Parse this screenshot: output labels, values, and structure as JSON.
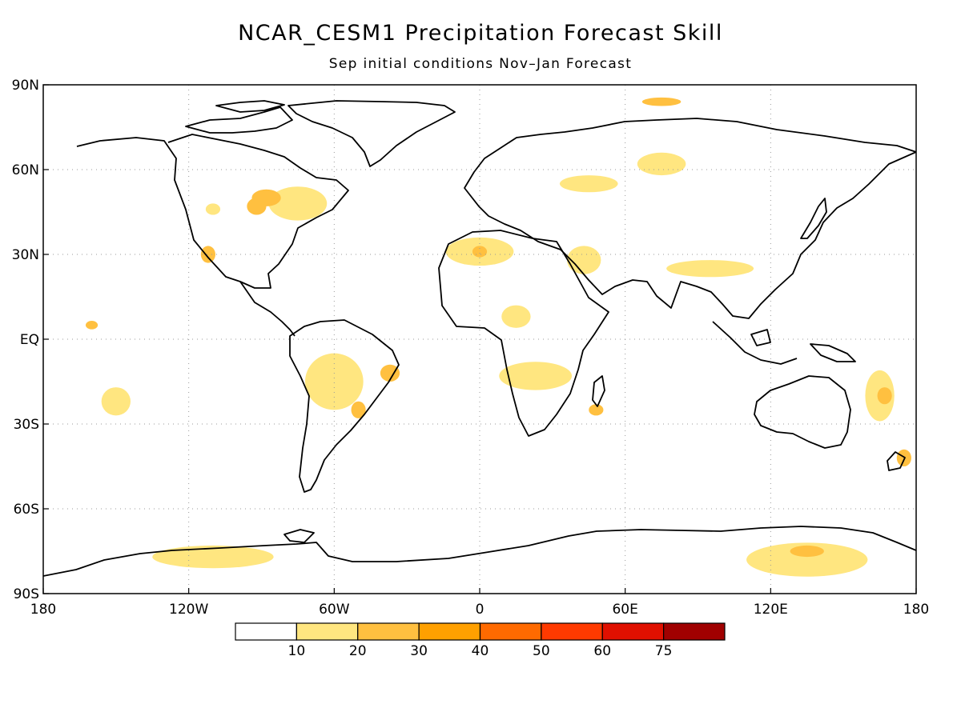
{
  "title": "NCAR_CESM1 Precipitation Forecast Skill",
  "subtitle": "Sep initial conditions   Nov–Jan Forecast",
  "axes": {
    "lon_ticks": [
      {
        "value": -180,
        "label": "180"
      },
      {
        "value": -120,
        "label": "120W"
      },
      {
        "value": -60,
        "label": "60W"
      },
      {
        "value": 0,
        "label": "0"
      },
      {
        "value": 60,
        "label": "60E"
      },
      {
        "value": 120,
        "label": "120E"
      },
      {
        "value": 180,
        "label": "180"
      }
    ],
    "lat_ticks": [
      {
        "value": 90,
        "label": "90N"
      },
      {
        "value": 60,
        "label": "60N"
      },
      {
        "value": 30,
        "label": "30N"
      },
      {
        "value": 0,
        "label": "EQ"
      },
      {
        "value": -30,
        "label": "30S"
      },
      {
        "value": -60,
        "label": "60S"
      },
      {
        "value": -90,
        "label": "90S"
      }
    ],
    "lon_range": [
      -180,
      180
    ],
    "lat_range": [
      -90,
      90
    ],
    "grid": "dotted"
  },
  "colorbar": {
    "labels": [
      "10",
      "20",
      "30",
      "40",
      "50",
      "60",
      "75"
    ],
    "colors": [
      "#ffffff",
      "#ffe680",
      "#ffc040",
      "#ffa000",
      "#ff6a00",
      "#ff3a00",
      "#e01000",
      "#a00000"
    ]
  },
  "chart_data": {
    "type": "heatmap",
    "title": "NCAR_CESM1 Precipitation Forecast Skill",
    "subtitle": "Sep initial conditions   Nov–Jan Forecast",
    "xlim": [
      -180,
      180
    ],
    "ylim": [
      -90,
      90
    ],
    "levels": [
      10,
      20,
      30,
      40,
      50,
      60,
      75
    ],
    "regions": [
      {
        "lon": -75,
        "lat": 48,
        "rx": 12,
        "ry": 6,
        "level": 10
      },
      {
        "lon": -88,
        "lat": 50,
        "rx": 6,
        "ry": 3,
        "level": 20
      },
      {
        "lon": -92,
        "lat": 47,
        "rx": 4,
        "ry": 3,
        "level": 20
      },
      {
        "lon": -112,
        "lat": 30,
        "rx": 3,
        "ry": 3,
        "level": 20
      },
      {
        "lon": -110,
        "lat": 46,
        "rx": 3,
        "ry": 2,
        "level": 10
      },
      {
        "lon": -160,
        "lat": 5,
        "rx": 2.5,
        "ry": 1.5,
        "level": 20
      },
      {
        "lon": -150,
        "lat": -22,
        "rx": 6,
        "ry": 5,
        "level": 10
      },
      {
        "lon": 0,
        "lat": 31,
        "rx": 14,
        "ry": 5,
        "level": 10
      },
      {
        "lon": 0,
        "lat": 31,
        "rx": 3,
        "ry": 2,
        "level": 20
      },
      {
        "lon": 23,
        "lat": -13,
        "rx": 15,
        "ry": 5,
        "level": 10
      },
      {
        "lon": 15,
        "lat": 8,
        "rx": 6,
        "ry": 4,
        "level": 10
      },
      {
        "lon": 43,
        "lat": 28,
        "rx": 7,
        "ry": 5,
        "level": 10
      },
      {
        "lon": 48,
        "lat": -25,
        "rx": 3,
        "ry": 2,
        "level": 20
      },
      {
        "lon": 75,
        "lat": 62,
        "rx": 10,
        "ry": 4,
        "level": 10
      },
      {
        "lon": 45,
        "lat": 55,
        "rx": 12,
        "ry": 3,
        "level": 10
      },
      {
        "lon": 95,
        "lat": 25,
        "rx": 18,
        "ry": 3,
        "level": 10
      },
      {
        "lon": 75,
        "lat": 84,
        "rx": 8,
        "ry": 1.5,
        "level": 20
      },
      {
        "lon": 165,
        "lat": -20,
        "rx": 6,
        "ry": 9,
        "level": 10
      },
      {
        "lon": 167,
        "lat": -20,
        "rx": 3,
        "ry": 3,
        "level": 20
      },
      {
        "lon": 175,
        "lat": -42,
        "rx": 3,
        "ry": 3,
        "level": 20
      },
      {
        "lon": 135,
        "lat": -78,
        "rx": 25,
        "ry": 6,
        "level": 10
      },
      {
        "lon": 135,
        "lat": -75,
        "rx": 7,
        "ry": 2,
        "level": 20
      },
      {
        "lon": -110,
        "lat": -77,
        "rx": 25,
        "ry": 4,
        "level": 10
      },
      {
        "lon": -60,
        "lat": -15,
        "rx": 12,
        "ry": 10,
        "level": 10
      },
      {
        "lon": -50,
        "lat": -25,
        "rx": 3,
        "ry": 3,
        "level": 20
      },
      {
        "lon": -37,
        "lat": -12,
        "rx": 4,
        "ry": 3,
        "level": 20
      }
    ]
  }
}
